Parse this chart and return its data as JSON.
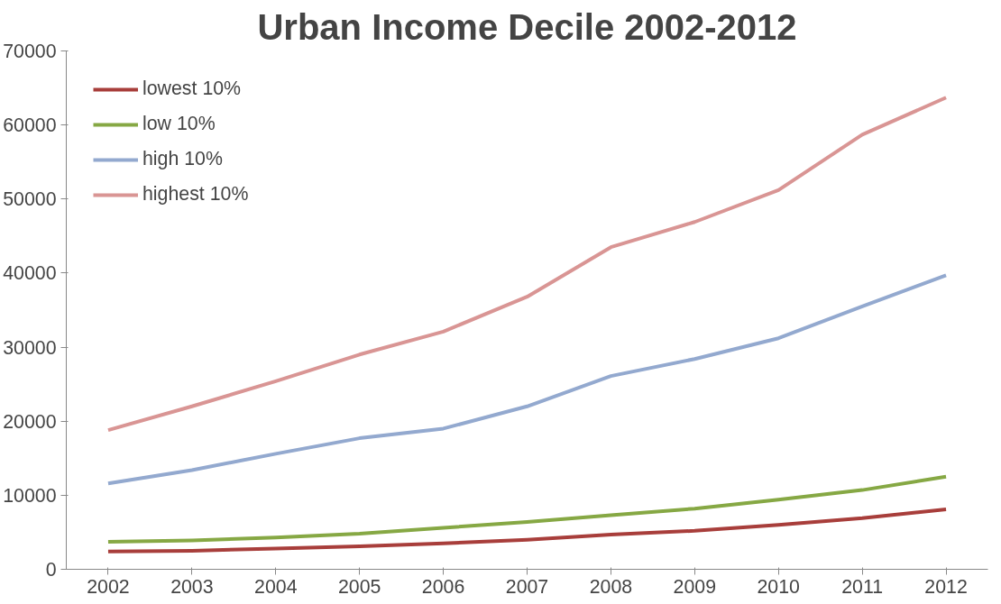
{
  "chart_data": {
    "type": "line",
    "title": "Urban Income Decile 2002-2012",
    "categories": [
      "2002",
      "2003",
      "2004",
      "2005",
      "2006",
      "2007",
      "2008",
      "2009",
      "2010",
      "2011",
      "2012"
    ],
    "series": [
      {
        "name": "lowest 10%",
        "color": "#a83e3b",
        "values": [
          2400,
          2500,
          2800,
          3100,
          3500,
          4000,
          4700,
          5200,
          6000,
          6900,
          8100
        ]
      },
      {
        "name": "low 10%",
        "color": "#86a844",
        "values": [
          3700,
          3900,
          4300,
          4800,
          5600,
          6400,
          7300,
          8200,
          9400,
          10700,
          12500
        ]
      },
      {
        "name": "high 10%",
        "color": "#93a9cf",
        "values": [
          11600,
          13400,
          15600,
          17700,
          19000,
          22000,
          26100,
          28400,
          31200,
          35500,
          39700
        ]
      },
      {
        "name": "highest 10%",
        "color": "#d99594",
        "values": [
          18800,
          22000,
          25400,
          29000,
          32100,
          36800,
          43500,
          46900,
          51200,
          58700,
          63700
        ]
      }
    ],
    "ylim": [
      0,
      70000
    ],
    "yticks": [
      0,
      10000,
      20000,
      30000,
      40000,
      50000,
      60000,
      70000
    ],
    "grid": false,
    "legend": "top left",
    "marker": "none",
    "line_style": "solid"
  }
}
